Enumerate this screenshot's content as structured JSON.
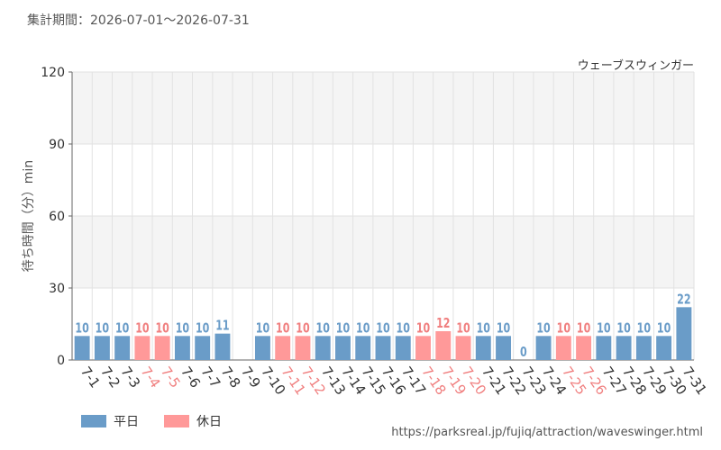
{
  "period_text": "集計期間：2026-07-01～2026-07-31",
  "attraction_name": "ウェーブスウィンガー",
  "source_url": "https://parksreal.jp/fujiq/attraction/waveswinger.html",
  "legend": {
    "weekday": "平日",
    "holiday": "休日"
  },
  "colors": {
    "weekday": "#6a9cc8",
    "holiday": "#ff9999",
    "holiday_text": "#f07f7f",
    "band": "#f4f4f4",
    "grid": "#e2e2e2"
  },
  "chart_data": {
    "type": "bar",
    "title": "",
    "ylabel": "待ち時間（分）min",
    "ylim": [
      0,
      120
    ],
    "yticks": [
      0,
      30,
      60,
      90,
      120
    ],
    "categories": [
      "7-1",
      "7-2",
      "7-3",
      "7-4",
      "7-5",
      "7-6",
      "7-7",
      "7-8",
      "7-9",
      "7-10",
      "7-11",
      "7-12",
      "7-13",
      "7-14",
      "7-15",
      "7-16",
      "7-17",
      "7-18",
      "7-19",
      "7-20",
      "7-21",
      "7-22",
      "7-23",
      "7-24",
      "7-25",
      "7-26",
      "7-27",
      "7-28",
      "7-29",
      "7-30",
      "7-31"
    ],
    "values": [
      10,
      10,
      10,
      10,
      10,
      10,
      10,
      11,
      null,
      10,
      10,
      10,
      10,
      10,
      10,
      10,
      10,
      10,
      12,
      10,
      10,
      10,
      0,
      10,
      10,
      10,
      10,
      10,
      10,
      10,
      22
    ],
    "day_type": [
      "weekday",
      "weekday",
      "weekday",
      "holiday",
      "holiday",
      "weekday",
      "weekday",
      "weekday",
      "weekday",
      "weekday",
      "holiday",
      "holiday",
      "weekday",
      "weekday",
      "weekday",
      "weekday",
      "weekday",
      "holiday",
      "holiday",
      "holiday",
      "weekday",
      "weekday",
      "weekday",
      "weekday",
      "holiday",
      "holiday",
      "weekday",
      "weekday",
      "weekday",
      "weekday",
      "weekday"
    ]
  }
}
